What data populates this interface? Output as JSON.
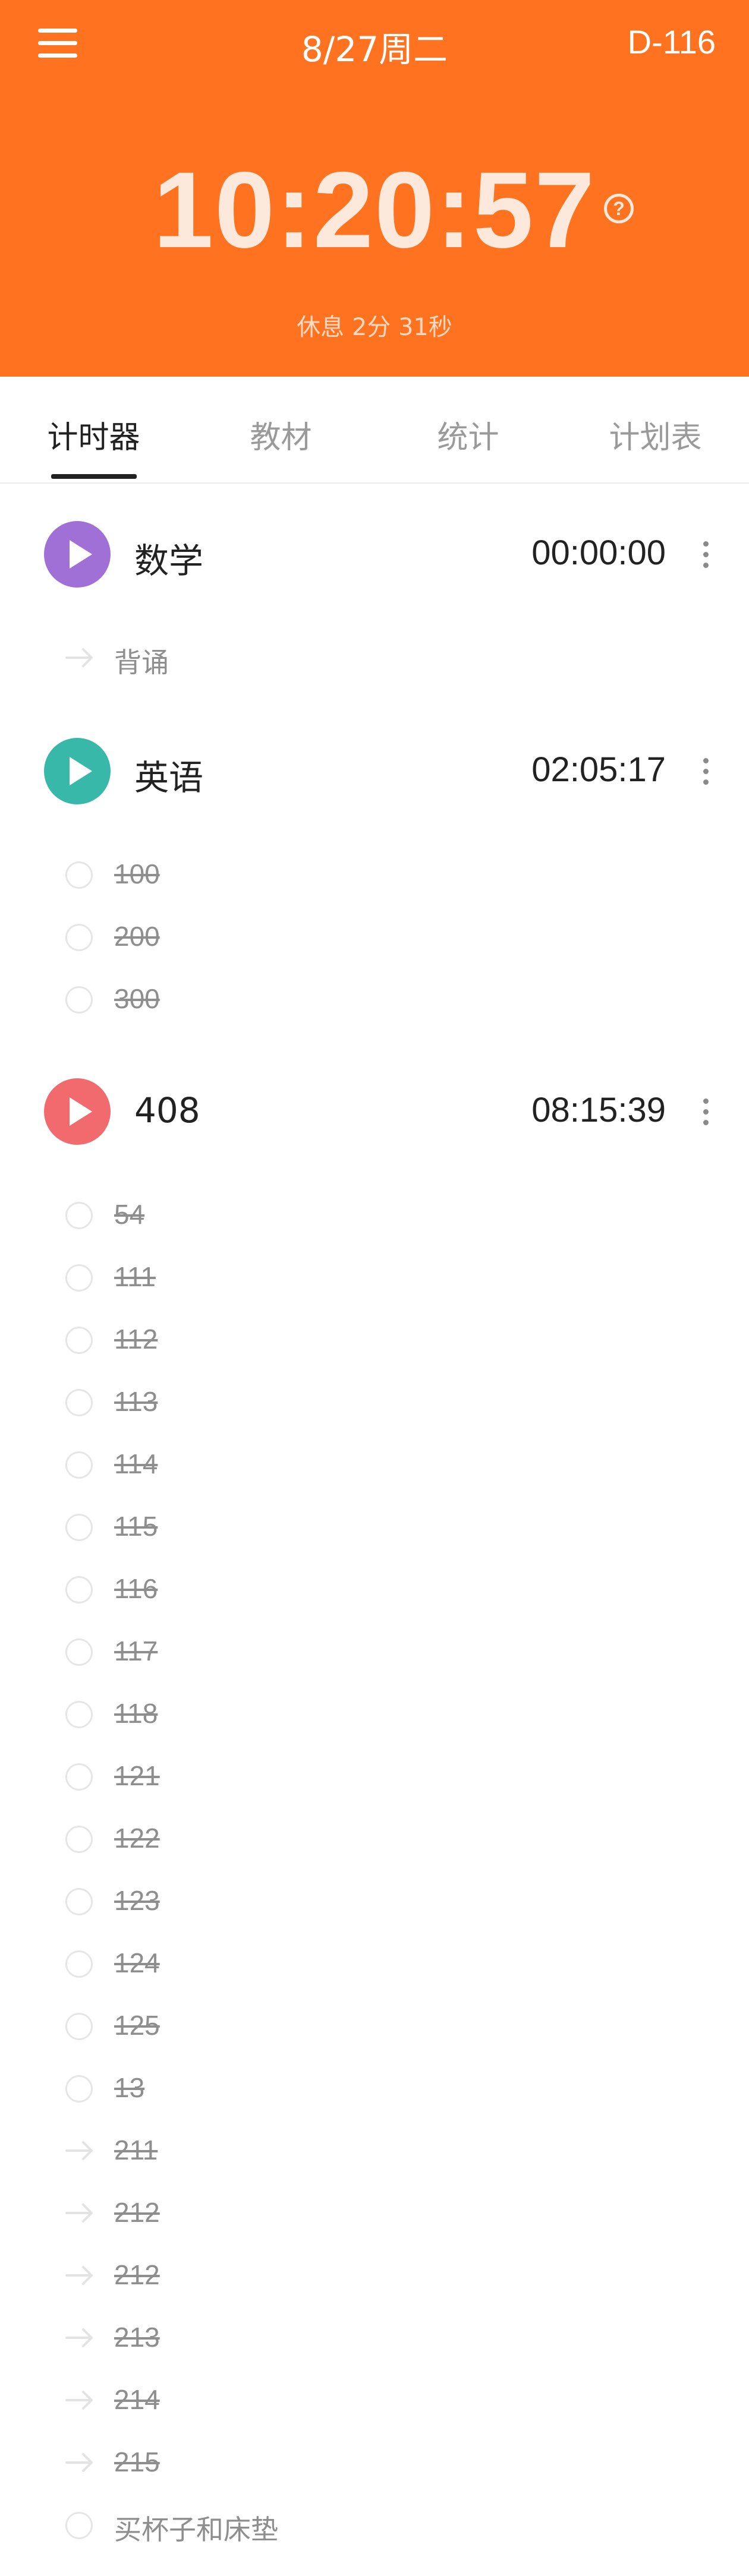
{
  "header": {
    "date": "8/27周二",
    "countdown": "D-116",
    "clock": "10:20:57",
    "help_icon": "question-circle-icon",
    "rest": "休息  2分 31秒",
    "color": "#ff7320"
  },
  "tabs": [
    {
      "label": "计时器",
      "active": true
    },
    {
      "label": "教材",
      "active": false
    },
    {
      "label": "统计",
      "active": false
    },
    {
      "label": "计划表",
      "active": false
    }
  ],
  "subjects": [
    {
      "name": "数学",
      "time": "00:00:00",
      "color": "#a070d6",
      "items": [
        {
          "label": "背诵",
          "icon": "arrow",
          "done": false
        }
      ]
    },
    {
      "name": "英语",
      "time": "02:05:17",
      "color": "#38b8a8",
      "items": [
        {
          "label": "100",
          "icon": "circle",
          "done": true
        },
        {
          "label": "200",
          "icon": "circle",
          "done": true
        },
        {
          "label": "300",
          "icon": "circle",
          "done": true
        }
      ]
    },
    {
      "name": "408",
      "time": "08:15:39",
      "color": "#f06a6e",
      "items": [
        {
          "label": "54",
          "icon": "circle",
          "done": true
        },
        {
          "label": "111",
          "icon": "circle",
          "done": true
        },
        {
          "label": "112",
          "icon": "circle",
          "done": true
        },
        {
          "label": "113",
          "icon": "circle",
          "done": true
        },
        {
          "label": "114",
          "icon": "circle",
          "done": true
        },
        {
          "label": "115",
          "icon": "circle",
          "done": true
        },
        {
          "label": "116",
          "icon": "circle",
          "done": true
        },
        {
          "label": "117",
          "icon": "circle",
          "done": true
        },
        {
          "label": "118",
          "icon": "circle",
          "done": true
        },
        {
          "label": "121",
          "icon": "circle",
          "done": true
        },
        {
          "label": "122",
          "icon": "circle",
          "done": true
        },
        {
          "label": "123",
          "icon": "circle",
          "done": true
        },
        {
          "label": "124",
          "icon": "circle",
          "done": true
        },
        {
          "label": "125",
          "icon": "circle",
          "done": true
        },
        {
          "label": "13",
          "icon": "circle",
          "done": true
        },
        {
          "label": "211",
          "icon": "arrow",
          "done": true
        },
        {
          "label": "212",
          "icon": "arrow",
          "done": true
        },
        {
          "label": "212",
          "icon": "arrow",
          "done": true
        },
        {
          "label": "213",
          "icon": "arrow",
          "done": true
        },
        {
          "label": "214",
          "icon": "arrow",
          "done": true
        },
        {
          "label": "215",
          "icon": "arrow",
          "done": true
        },
        {
          "label": "买杯子和床垫",
          "icon": "circle",
          "done": false
        }
      ]
    }
  ]
}
